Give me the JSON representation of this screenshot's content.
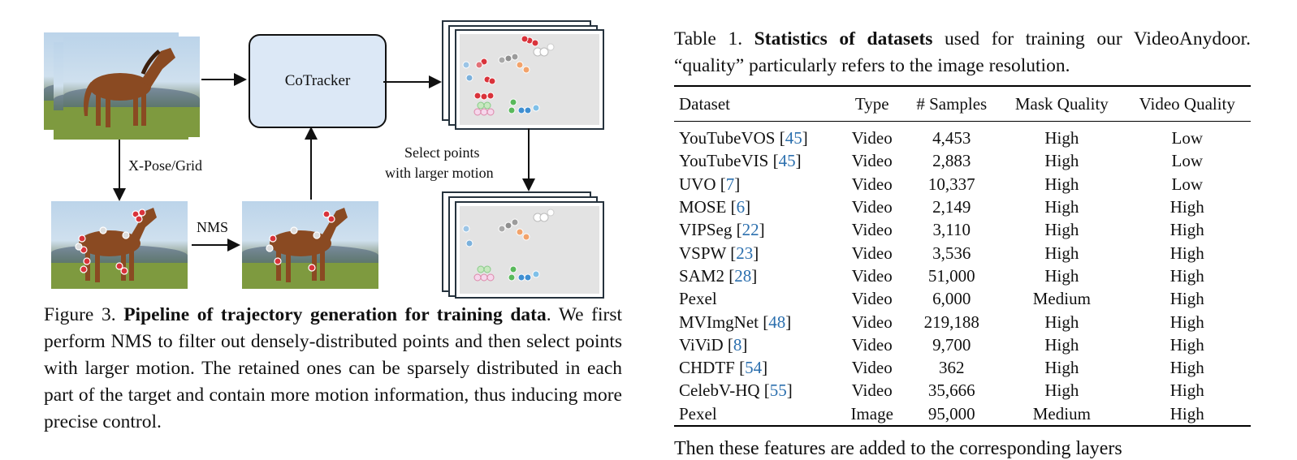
{
  "figure": {
    "tracker_label": "CoTracker",
    "pose_label": "X-Pose/Grid",
    "nms_label": "NMS",
    "select_label_line1": "Select points",
    "select_label_line2": "with larger motion",
    "caption_prefix": "Figure 3.",
    "caption_bold": "Pipeline of trajectory generation for training data",
    "caption_rest": ". We first perform NMS to filter out densely-distributed points and then select points with larger motion. The retained ones can be sparsely distributed in each part of the target and contain more motion information, thus inducing more precise control."
  },
  "table": {
    "caption_prefix": "Table 1.",
    "caption_bold": "Statistics of datasets",
    "caption_rest": " used for training our VideoAnydoor. “quality” particularly refers to the image resolution.",
    "headers": [
      "Dataset",
      "Type",
      "# Samples",
      "Mask Quality",
      "Video Quality"
    ],
    "rows": [
      {
        "name": "YouTubeVOS",
        "ref": "45",
        "type": "Video",
        "samples": "4,453",
        "mask": "High",
        "video": "Low"
      },
      {
        "name": "YouTubeVIS",
        "ref": "45",
        "type": "Video",
        "samples": "2,883",
        "mask": "High",
        "video": "Low"
      },
      {
        "name": "UVO",
        "ref": "7",
        "type": "Video",
        "samples": "10,337",
        "mask": "High",
        "video": "Low"
      },
      {
        "name": "MOSE",
        "ref": "6",
        "type": "Video",
        "samples": "2,149",
        "mask": "High",
        "video": "High"
      },
      {
        "name": "VIPSeg",
        "ref": "22",
        "type": "Video",
        "samples": "3,110",
        "mask": "High",
        "video": "High"
      },
      {
        "name": "VSPW",
        "ref": "23",
        "type": "Video",
        "samples": "3,536",
        "mask": "High",
        "video": "High"
      },
      {
        "name": "SAM2",
        "ref": "28",
        "type": "Video",
        "samples": "51,000",
        "mask": "High",
        "video": "High"
      },
      {
        "name": "Pexel",
        "ref": "",
        "type": "Video",
        "samples": "6,000",
        "mask": "Medium",
        "video": "High"
      },
      {
        "name": "MVImgNet",
        "ref": "48",
        "type": "Video",
        "samples": "219,188",
        "mask": "High",
        "video": "High"
      },
      {
        "name": "ViViD",
        "ref": "8",
        "type": "Video",
        "samples": "9,700",
        "mask": "High",
        "video": "High"
      },
      {
        "name": "CHDTF",
        "ref": "54",
        "type": "Video",
        "samples": "362",
        "mask": "High",
        "video": "High"
      },
      {
        "name": "CelebV-HQ",
        "ref": "55",
        "type": "Video",
        "samples": "35,666",
        "mask": "High",
        "video": "High"
      },
      {
        "name": "Pexel",
        "ref": "",
        "type": "Image",
        "samples": "95,000",
        "mask": "Medium",
        "video": "High"
      }
    ]
  },
  "body_text_fragment": "Then these features are added to the corresponding layers",
  "colors": {
    "link": "#2b6fae",
    "tracker_fill": "#dce8f6",
    "panel_bg": "#e3e3e3"
  }
}
